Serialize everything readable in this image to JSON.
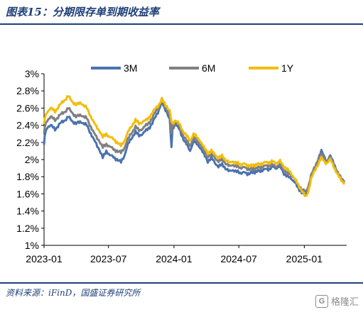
{
  "figure": {
    "title": "图表15：分期限存单到期收益率",
    "source": "资料来源：iFinD，国盛证券研究所",
    "watermark": "格隆汇",
    "watermark_logo": "G"
  },
  "colors": {
    "3M": "#4a72b0",
    "6M": "#808080",
    "1Y": "#f2bd0c",
    "header": "#1f3f78"
  },
  "chart_data": {
    "type": "line",
    "title": "",
    "xlabel": "",
    "ylabel": "",
    "ylim": [
      1,
      3
    ],
    "yticks": [
      1.0,
      1.2,
      1.4,
      1.6,
      1.8,
      2.0,
      2.2,
      2.4,
      2.6,
      2.8,
      3.0
    ],
    "ytick_labels": [
      "1%",
      "1.2%",
      "1.4%",
      "1.6%",
      "1.8%",
      "2%",
      "2.2%",
      "2.4%",
      "2.6%",
      "2.8%",
      "3%"
    ],
    "x_start": "2023-01-01",
    "x_end": "2025-04-30",
    "xticks": [
      "2023-01-01",
      "2023-07-01",
      "2024-01-01",
      "2024-07-01",
      "2025-01-01"
    ],
    "xtick_labels": [
      "2023-01",
      "2023-07",
      "2024-01",
      "2024-07",
      "2025-01"
    ],
    "legend_position": "top",
    "grid": false,
    "series": [
      {
        "name": "3M",
        "color": "#4a72b0",
        "points": [
          [
            "2023-01-01",
            2.16
          ],
          [
            "2023-01-03",
            2.28
          ],
          [
            "2023-01-10",
            2.38
          ],
          [
            "2023-01-20",
            2.4
          ],
          [
            "2023-02-01",
            2.35
          ],
          [
            "2023-02-15",
            2.42
          ],
          [
            "2023-03-01",
            2.46
          ],
          [
            "2023-03-10",
            2.5
          ],
          [
            "2023-03-20",
            2.45
          ],
          [
            "2023-04-01",
            2.42
          ],
          [
            "2023-04-15",
            2.44
          ],
          [
            "2023-05-01",
            2.4
          ],
          [
            "2023-05-15",
            2.28
          ],
          [
            "2023-05-25",
            2.2
          ],
          [
            "2023-06-05",
            2.12
          ],
          [
            "2023-06-15",
            2.02
          ],
          [
            "2023-06-25",
            2.1
          ],
          [
            "2023-07-05",
            2.05
          ],
          [
            "2023-07-15",
            2.03
          ],
          [
            "2023-07-25",
            2.0
          ],
          [
            "2023-08-05",
            1.97
          ],
          [
            "2023-08-15",
            2.05
          ],
          [
            "2023-08-25",
            2.18
          ],
          [
            "2023-09-05",
            2.26
          ],
          [
            "2023-09-15",
            2.32
          ],
          [
            "2023-09-25",
            2.28
          ],
          [
            "2023-10-05",
            2.3
          ],
          [
            "2023-10-15",
            2.34
          ],
          [
            "2023-10-25",
            2.38
          ],
          [
            "2023-11-01",
            2.42
          ],
          [
            "2023-11-10",
            2.5
          ],
          [
            "2023-11-20",
            2.58
          ],
          [
            "2023-11-28",
            2.68
          ],
          [
            "2023-12-05",
            2.6
          ],
          [
            "2023-12-12",
            2.56
          ],
          [
            "2023-12-20",
            2.46
          ],
          [
            "2023-12-25",
            2.14
          ],
          [
            "2023-12-28",
            2.36
          ],
          [
            "2024-01-05",
            2.42
          ],
          [
            "2024-01-15",
            2.36
          ],
          [
            "2024-01-25",
            2.26
          ],
          [
            "2024-02-05",
            2.18
          ],
          [
            "2024-02-15",
            2.1
          ],
          [
            "2024-02-25",
            2.22
          ],
          [
            "2024-03-05",
            2.18
          ],
          [
            "2024-03-15",
            2.14
          ],
          [
            "2024-03-25",
            2.06
          ],
          [
            "2024-04-05",
            1.98
          ],
          [
            "2024-04-15",
            2.02
          ],
          [
            "2024-04-25",
            1.96
          ],
          [
            "2024-05-05",
            1.92
          ],
          [
            "2024-05-15",
            1.94
          ],
          [
            "2024-05-25",
            1.9
          ],
          [
            "2024-06-05",
            1.86
          ],
          [
            "2024-06-15",
            1.88
          ],
          [
            "2024-06-25",
            1.86
          ],
          [
            "2024-07-05",
            1.84
          ],
          [
            "2024-07-15",
            1.86
          ],
          [
            "2024-07-25",
            1.82
          ],
          [
            "2024-08-05",
            1.86
          ],
          [
            "2024-08-15",
            1.84
          ],
          [
            "2024-08-25",
            1.88
          ],
          [
            "2024-09-05",
            1.86
          ],
          [
            "2024-09-15",
            1.9
          ],
          [
            "2024-09-25",
            1.88
          ],
          [
            "2024-10-05",
            1.92
          ],
          [
            "2024-10-15",
            1.9
          ],
          [
            "2024-10-25",
            1.92
          ],
          [
            "2024-11-05",
            1.84
          ],
          [
            "2024-11-15",
            1.8
          ],
          [
            "2024-11-25",
            1.78
          ],
          [
            "2024-12-05",
            1.74
          ],
          [
            "2024-12-15",
            1.66
          ],
          [
            "2024-12-25",
            1.62
          ],
          [
            "2025-01-05",
            1.58
          ],
          [
            "2025-01-12",
            1.66
          ],
          [
            "2025-01-20",
            1.8
          ],
          [
            "2025-02-01",
            1.9
          ],
          [
            "2025-02-10",
            2.02
          ],
          [
            "2025-02-18",
            2.1
          ],
          [
            "2025-02-25",
            2.04
          ],
          [
            "2025-03-05",
            1.98
          ],
          [
            "2025-03-15",
            2.04
          ],
          [
            "2025-03-25",
            1.96
          ],
          [
            "2025-04-05",
            1.84
          ],
          [
            "2025-04-15",
            1.78
          ],
          [
            "2025-04-25",
            1.75
          ]
        ]
      },
      {
        "name": "6M",
        "color": "#808080",
        "points": [
          [
            "2023-01-01",
            2.3
          ],
          [
            "2023-01-03",
            2.38
          ],
          [
            "2023-01-10",
            2.46
          ],
          [
            "2023-01-20",
            2.5
          ],
          [
            "2023-02-01",
            2.46
          ],
          [
            "2023-02-15",
            2.52
          ],
          [
            "2023-03-01",
            2.56
          ],
          [
            "2023-03-10",
            2.6
          ],
          [
            "2023-03-20",
            2.55
          ],
          [
            "2023-04-01",
            2.5
          ],
          [
            "2023-04-15",
            2.52
          ],
          [
            "2023-05-01",
            2.48
          ],
          [
            "2023-05-15",
            2.36
          ],
          [
            "2023-05-25",
            2.28
          ],
          [
            "2023-06-05",
            2.22
          ],
          [
            "2023-06-15",
            2.14
          ],
          [
            "2023-06-25",
            2.18
          ],
          [
            "2023-07-05",
            2.15
          ],
          [
            "2023-07-15",
            2.12
          ],
          [
            "2023-07-25",
            2.1
          ],
          [
            "2023-08-05",
            2.08
          ],
          [
            "2023-08-15",
            2.14
          ],
          [
            "2023-08-25",
            2.24
          ],
          [
            "2023-09-05",
            2.32
          ],
          [
            "2023-09-15",
            2.38
          ],
          [
            "2023-09-25",
            2.34
          ],
          [
            "2023-10-05",
            2.36
          ],
          [
            "2023-10-15",
            2.4
          ],
          [
            "2023-10-25",
            2.44
          ],
          [
            "2023-11-01",
            2.48
          ],
          [
            "2023-11-10",
            2.56
          ],
          [
            "2023-11-20",
            2.62
          ],
          [
            "2023-11-28",
            2.7
          ],
          [
            "2023-12-05",
            2.64
          ],
          [
            "2023-12-12",
            2.6
          ],
          [
            "2023-12-20",
            2.52
          ],
          [
            "2023-12-25",
            2.3
          ],
          [
            "2023-12-28",
            2.4
          ],
          [
            "2024-01-05",
            2.45
          ],
          [
            "2024-01-15",
            2.4
          ],
          [
            "2024-01-25",
            2.3
          ],
          [
            "2024-02-05",
            2.22
          ],
          [
            "2024-02-15",
            2.16
          ],
          [
            "2024-02-25",
            2.26
          ],
          [
            "2024-03-05",
            2.22
          ],
          [
            "2024-03-15",
            2.18
          ],
          [
            "2024-03-25",
            2.1
          ],
          [
            "2024-04-05",
            2.04
          ],
          [
            "2024-04-15",
            2.06
          ],
          [
            "2024-04-25",
            2.02
          ],
          [
            "2024-05-05",
            1.98
          ],
          [
            "2024-05-15",
            2.0
          ],
          [
            "2024-05-25",
            1.96
          ],
          [
            "2024-06-05",
            1.92
          ],
          [
            "2024-06-15",
            1.94
          ],
          [
            "2024-06-25",
            1.92
          ],
          [
            "2024-07-05",
            1.9
          ],
          [
            "2024-07-15",
            1.92
          ],
          [
            "2024-07-25",
            1.88
          ],
          [
            "2024-08-05",
            1.9
          ],
          [
            "2024-08-15",
            1.88
          ],
          [
            "2024-08-25",
            1.92
          ],
          [
            "2024-09-05",
            1.9
          ],
          [
            "2024-09-15",
            1.94
          ],
          [
            "2024-09-25",
            1.92
          ],
          [
            "2024-10-05",
            1.94
          ],
          [
            "2024-10-15",
            1.92
          ],
          [
            "2024-10-25",
            1.94
          ],
          [
            "2024-11-05",
            1.88
          ],
          [
            "2024-11-15",
            1.84
          ],
          [
            "2024-11-25",
            1.82
          ],
          [
            "2024-12-05",
            1.78
          ],
          [
            "2024-12-15",
            1.7
          ],
          [
            "2024-12-25",
            1.66
          ],
          [
            "2025-01-05",
            1.62
          ],
          [
            "2025-01-12",
            1.68
          ],
          [
            "2025-01-20",
            1.82
          ],
          [
            "2025-02-01",
            1.92
          ],
          [
            "2025-02-10",
            2.02
          ],
          [
            "2025-02-18",
            2.06
          ],
          [
            "2025-02-25",
            2.02
          ],
          [
            "2025-03-05",
            1.98
          ],
          [
            "2025-03-15",
            2.02
          ],
          [
            "2025-03-25",
            1.94
          ],
          [
            "2025-04-05",
            1.84
          ],
          [
            "2025-04-15",
            1.78
          ],
          [
            "2025-04-25",
            1.74
          ]
        ]
      },
      {
        "name": "1Y",
        "color": "#f2bd0c",
        "points": [
          [
            "2023-01-01",
            2.4
          ],
          [
            "2023-01-03",
            2.48
          ],
          [
            "2023-01-10",
            2.56
          ],
          [
            "2023-01-20",
            2.6
          ],
          [
            "2023-02-01",
            2.56
          ],
          [
            "2023-02-15",
            2.64
          ],
          [
            "2023-03-01",
            2.7
          ],
          [
            "2023-03-10",
            2.74
          ],
          [
            "2023-03-20",
            2.68
          ],
          [
            "2023-04-01",
            2.64
          ],
          [
            "2023-04-15",
            2.66
          ],
          [
            "2023-05-01",
            2.6
          ],
          [
            "2023-05-15",
            2.48
          ],
          [
            "2023-05-25",
            2.4
          ],
          [
            "2023-06-05",
            2.34
          ],
          [
            "2023-06-15",
            2.26
          ],
          [
            "2023-06-25",
            2.3
          ],
          [
            "2023-07-05",
            2.26
          ],
          [
            "2023-07-15",
            2.24
          ],
          [
            "2023-07-25",
            2.2
          ],
          [
            "2023-08-05",
            2.16
          ],
          [
            "2023-08-15",
            2.22
          ],
          [
            "2023-08-25",
            2.32
          ],
          [
            "2023-09-05",
            2.4
          ],
          [
            "2023-09-15",
            2.46
          ],
          [
            "2023-09-25",
            2.42
          ],
          [
            "2023-10-05",
            2.44
          ],
          [
            "2023-10-15",
            2.46
          ],
          [
            "2023-10-25",
            2.5
          ],
          [
            "2023-11-01",
            2.54
          ],
          [
            "2023-11-10",
            2.6
          ],
          [
            "2023-11-20",
            2.64
          ],
          [
            "2023-11-28",
            2.7
          ],
          [
            "2023-12-05",
            2.66
          ],
          [
            "2023-12-12",
            2.62
          ],
          [
            "2023-12-20",
            2.56
          ],
          [
            "2023-12-25",
            2.44
          ],
          [
            "2023-12-28",
            2.42
          ],
          [
            "2024-01-05",
            2.46
          ],
          [
            "2024-01-15",
            2.42
          ],
          [
            "2024-01-25",
            2.34
          ],
          [
            "2024-02-05",
            2.28
          ],
          [
            "2024-02-15",
            2.22
          ],
          [
            "2024-02-25",
            2.3
          ],
          [
            "2024-03-05",
            2.26
          ],
          [
            "2024-03-15",
            2.22
          ],
          [
            "2024-03-25",
            2.14
          ],
          [
            "2024-04-05",
            2.08
          ],
          [
            "2024-04-15",
            2.1
          ],
          [
            "2024-04-25",
            2.06
          ],
          [
            "2024-05-05",
            2.02
          ],
          [
            "2024-05-15",
            2.04
          ],
          [
            "2024-05-25",
            2.0
          ],
          [
            "2024-06-05",
            1.96
          ],
          [
            "2024-06-15",
            1.98
          ],
          [
            "2024-06-25",
            1.96
          ],
          [
            "2024-07-05",
            1.94
          ],
          [
            "2024-07-15",
            1.96
          ],
          [
            "2024-07-25",
            1.92
          ],
          [
            "2024-08-05",
            1.94
          ],
          [
            "2024-08-15",
            1.92
          ],
          [
            "2024-08-25",
            1.96
          ],
          [
            "2024-09-05",
            1.94
          ],
          [
            "2024-09-15",
            1.98
          ],
          [
            "2024-09-25",
            1.96
          ],
          [
            "2024-10-05",
            1.98
          ],
          [
            "2024-10-15",
            1.96
          ],
          [
            "2024-10-25",
            1.98
          ],
          [
            "2024-11-05",
            1.92
          ],
          [
            "2024-11-15",
            1.88
          ],
          [
            "2024-11-25",
            1.84
          ],
          [
            "2024-12-05",
            1.78
          ],
          [
            "2024-12-15",
            1.7
          ],
          [
            "2024-12-25",
            1.64
          ],
          [
            "2025-01-05",
            1.56
          ],
          [
            "2025-01-12",
            1.62
          ],
          [
            "2025-01-20",
            1.78
          ],
          [
            "2025-02-01",
            1.88
          ],
          [
            "2025-02-10",
            1.96
          ],
          [
            "2025-02-18",
            2.02
          ],
          [
            "2025-02-25",
            1.98
          ],
          [
            "2025-03-05",
            1.96
          ],
          [
            "2025-03-15",
            2.0
          ],
          [
            "2025-03-25",
            1.92
          ],
          [
            "2025-04-05",
            1.82
          ],
          [
            "2025-04-15",
            1.76
          ],
          [
            "2025-04-25",
            1.72
          ]
        ]
      }
    ]
  }
}
